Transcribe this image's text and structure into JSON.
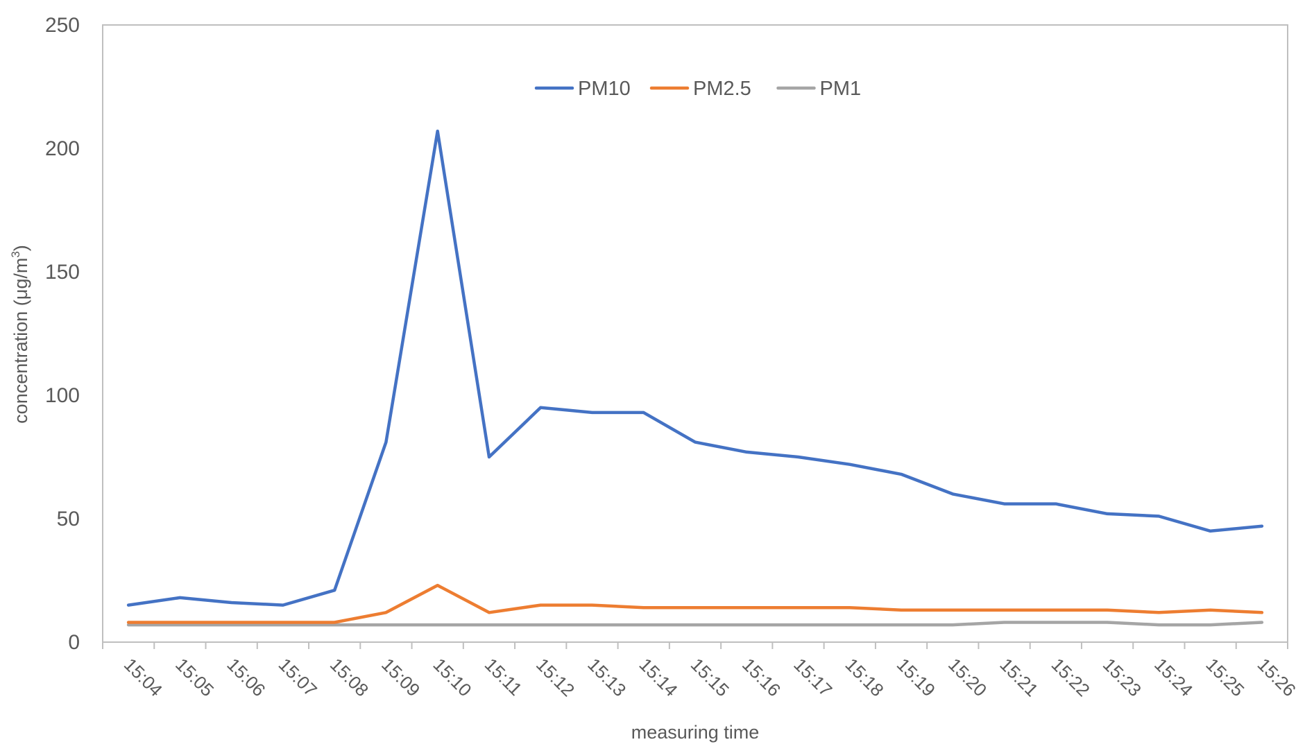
{
  "chart_data": {
    "type": "line",
    "xlabel": "measuring time",
    "ylabel_prefix": "concentration (μg/m",
    "ylabel_sup": "3",
    "ylabel_suffix": ")",
    "ylim": [
      0,
      250
    ],
    "yticks": [
      "0",
      "50",
      "100",
      "150",
      "200",
      "250"
    ],
    "grid": false,
    "legend_position": "top-center",
    "categories": [
      "15:04",
      "15:05",
      "15:06",
      "15:07",
      "15:08",
      "15:09",
      "15:10",
      "15:11",
      "15:12",
      "15:13",
      "15:14",
      "15:15",
      "15:16",
      "15:17",
      "15:18",
      "15:19",
      "15:20",
      "15:21",
      "15:22",
      "15:23",
      "15:24",
      "15:25",
      "15:26"
    ],
    "series": [
      {
        "name": "PM10",
        "color": "#4472C4",
        "values": [
          15,
          18,
          16,
          15,
          21,
          81,
          207,
          75,
          95,
          93,
          93,
          81,
          77,
          75,
          72,
          68,
          60,
          56,
          56,
          52,
          51,
          45,
          47
        ]
      },
      {
        "name": "PM2.5",
        "color": "#ED7D31",
        "values": [
          8,
          8,
          8,
          8,
          8,
          12,
          23,
          12,
          15,
          15,
          14,
          14,
          14,
          14,
          14,
          13,
          13,
          13,
          13,
          13,
          12,
          13,
          12
        ]
      },
      {
        "name": "PM1",
        "color": "#A5A5A5",
        "values": [
          7,
          7,
          7,
          7,
          7,
          7,
          7,
          7,
          7,
          7,
          7,
          7,
          7,
          7,
          7,
          7,
          7,
          8,
          8,
          8,
          7,
          7,
          8
        ]
      }
    ]
  }
}
